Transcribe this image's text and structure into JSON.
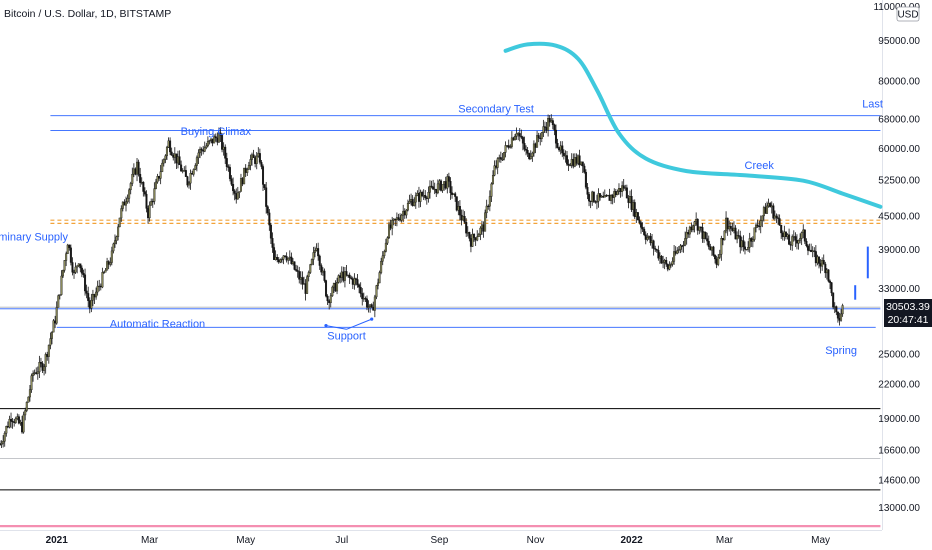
{
  "header": {
    "title": "Bitcoin / U.S. Dollar, 1D, BITSTAMP",
    "currency_button": "USD"
  },
  "colors": {
    "candle": "#141414",
    "body": "#8a8a5a",
    "line_blue": "#2962ff",
    "creek": "#3fc9dd",
    "dashed": "#f2a33a",
    "black_line": "#000000",
    "pink_line": "#f48fb1",
    "gray_line": "#b0b3b8",
    "annotation": "#2962ff"
  },
  "chart_data": {
    "type": "candlestick",
    "title": "Bitcoin / U.S. Dollar, 1D, BITSTAMP",
    "y_scale": "log",
    "ylim": [
      11800,
      113000
    ],
    "xlim": [
      "2020-11-26",
      "2022-06-09"
    ],
    "y_ticks": [
      "110000.00",
      "95000.00",
      "80000.00",
      "68000.00",
      "60000.00",
      "52500.00",
      "45000.00",
      "39000.00",
      "33000.00",
      "25000.00",
      "22000.00",
      "19000.00",
      "16600.00",
      "14600.00",
      "13000.00"
    ],
    "x_ticks": [
      {
        "label": "2021",
        "date": "2021-01-01"
      },
      {
        "label": "Mar",
        "date": "2021-03-01"
      },
      {
        "label": "May",
        "date": "2021-05-01"
      },
      {
        "label": "Jul",
        "date": "2021-07-01"
      },
      {
        "label": "Sep",
        "date": "2021-09-01"
      },
      {
        "label": "Nov",
        "date": "2021-11-01"
      },
      {
        "label": "2022",
        "date": "2022-01-01"
      },
      {
        "label": "Mar",
        "date": "2022-03-01"
      },
      {
        "label": "May",
        "date": "2022-05-01"
      }
    ],
    "price_path": [
      [
        "2020-11-26",
        17000
      ],
      [
        "2020-12-03",
        19200
      ],
      [
        "2020-12-10",
        18300
      ],
      [
        "2020-12-17",
        23000
      ],
      [
        "2020-12-24",
        24000
      ],
      [
        "2020-12-31",
        29000
      ],
      [
        "2021-01-08",
        40500
      ],
      [
        "2021-01-12",
        35000
      ],
      [
        "2021-01-15",
        37500
      ],
      [
        "2021-01-22",
        30500
      ],
      [
        "2021-01-29",
        34000
      ],
      [
        "2021-02-05",
        38000
      ],
      [
        "2021-02-10",
        45000
      ],
      [
        "2021-02-21",
        56000
      ],
      [
        "2021-02-28",
        45500
      ],
      [
        "2021-03-13",
        61500
      ],
      [
        "2021-03-25",
        52000
      ],
      [
        "2021-04-01",
        59000
      ],
      [
        "2021-04-14",
        63500
      ],
      [
        "2021-04-25",
        49000
      ],
      [
        "2021-05-03",
        57000
      ],
      [
        "2021-05-10",
        57500
      ],
      [
        "2021-05-19",
        37000
      ],
      [
        "2021-05-26",
        38500
      ],
      [
        "2021-06-08",
        33000
      ],
      [
        "2021-06-15",
        40000
      ],
      [
        "2021-06-22",
        31500
      ],
      [
        "2021-07-01",
        35000
      ],
      [
        "2021-07-10",
        34000
      ],
      [
        "2021-07-20",
        29800
      ],
      [
        "2021-07-30",
        42000
      ],
      [
        "2021-08-14",
        48000
      ],
      [
        "2021-08-23",
        49500
      ],
      [
        "2021-09-06",
        52000
      ],
      [
        "2021-09-21",
        40500
      ],
      [
        "2021-09-29",
        43000
      ],
      [
        "2021-10-06",
        55000
      ],
      [
        "2021-10-20",
        65000
      ],
      [
        "2021-10-27",
        58000
      ],
      [
        "2021-11-10",
        68000
      ],
      [
        "2021-11-19",
        57000
      ],
      [
        "2021-12-01",
        57000
      ],
      [
        "2021-12-04",
        49000
      ],
      [
        "2021-12-15",
        48000
      ],
      [
        "2021-12-27",
        51000
      ],
      [
        "2022-01-10",
        41500
      ],
      [
        "2022-01-24",
        36000
      ],
      [
        "2022-02-04",
        41000
      ],
      [
        "2022-02-10",
        44500
      ],
      [
        "2022-02-24",
        37000
      ],
      [
        "2022-03-02",
        44000
      ],
      [
        "2022-03-14",
        39000
      ],
      [
        "2022-03-29",
        47500
      ],
      [
        "2022-04-11",
        40000
      ],
      [
        "2022-04-20",
        41500
      ],
      [
        "2022-04-26",
        38000
      ],
      [
        "2022-05-05",
        36000
      ],
      [
        "2022-05-09",
        31000
      ],
      [
        "2022-05-12",
        28500
      ],
      [
        "2022-05-15",
        30500
      ]
    ],
    "last_price": "30503.39",
    "countdown": "20:47:41",
    "horizontal_levels": [
      {
        "price": 69000,
        "color": "blue",
        "from": "2020-12-28",
        "to": "2022-06-08"
      },
      {
        "price": 64800,
        "color": "blue",
        "from": "2020-12-28",
        "to": "2022-06-08"
      },
      {
        "price": 44200,
        "color": "dashed",
        "from": "2020-12-28",
        "to": "2022-06-08"
      },
      {
        "price": 43600,
        "color": "dashed",
        "from": "2020-12-28",
        "to": "2022-06-08"
      },
      {
        "price": 30300,
        "color": "blue",
        "from": "2020-11-26",
        "to": "2022-06-08"
      },
      {
        "price": 28000,
        "color": "blue",
        "from": "2021-01-01",
        "to": "2022-06-05"
      },
      {
        "price": 30500,
        "color": "gray",
        "from": "2020-11-26",
        "to": "2022-06-08"
      },
      {
        "price": 19800,
        "color": "black",
        "from": "2020-11-26",
        "to": "2022-06-08"
      },
      {
        "price": 16000,
        "color": "gray",
        "from": "2020-11-26",
        "to": "2022-06-08"
      },
      {
        "price": 14000,
        "color": "black",
        "from": "2020-11-26",
        "to": "2022-06-08"
      },
      {
        "price": 12000,
        "color": "pink",
        "from": "2020-11-26",
        "to": "2022-06-08"
      }
    ],
    "creek_curve": [
      [
        "2021-10-13",
        91000
      ],
      [
        "2021-10-27",
        93500
      ],
      [
        "2021-11-14",
        93000
      ],
      [
        "2021-11-28",
        88000
      ],
      [
        "2021-12-10",
        77000
      ],
      [
        "2021-12-24",
        64000
      ],
      [
        "2022-01-10",
        57500
      ],
      [
        "2022-02-05",
        54500
      ],
      [
        "2022-03-15",
        53500
      ],
      [
        "2022-04-20",
        52300
      ],
      [
        "2022-05-15",
        49500
      ],
      [
        "2022-06-08",
        46800
      ]
    ],
    "annotations": [
      {
        "text": "Preliminary Supply",
        "date": "2020-12-10",
        "price": 40500
      },
      {
        "text": "Buying Climax",
        "date": "2021-04-12",
        "price": 63500
      },
      {
        "text": "Secondary Test",
        "date": "2021-10-07",
        "price": 70000
      },
      {
        "text": "Last",
        "date": "2022-06-03",
        "price": 71500
      },
      {
        "text": "Creek",
        "date": "2022-03-23",
        "price": 55000
      },
      {
        "text": "Automatic Reaction",
        "date": "2021-03-06",
        "price": 28000
      },
      {
        "text": "Support",
        "date": "2021-07-04",
        "price": 26600
      },
      {
        "text": "Spring",
        "date": "2022-05-14",
        "price": 25000
      }
    ]
  }
}
